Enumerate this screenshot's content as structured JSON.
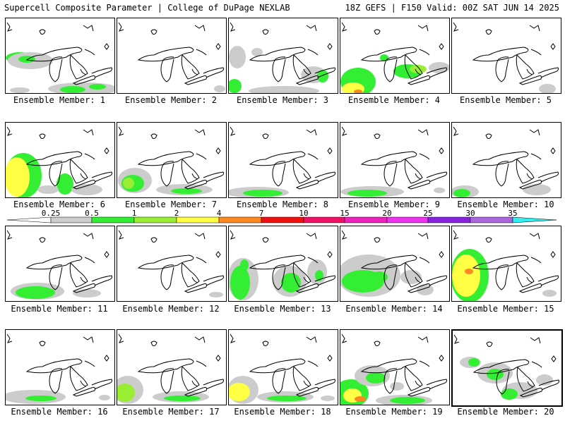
{
  "header": {
    "title": "Supercell Composite Parameter | College of DuPage NEXLAB",
    "run_info": "18Z GEFS | F150 Valid: 00Z SAT JUN 14 2025"
  },
  "colors": {
    "0.25": "#cccccc",
    "0.5": "#33ee33",
    "1": "#99ee33",
    "2": "#ffff44",
    "4": "#ff8822",
    "7": "#ee1111",
    "10": "#ee1166",
    "15": "#ee22bb",
    "20": "#ee33ee",
    "25": "#8822dd",
    "30": "#aa66dd",
    "35": "#33eeee"
  },
  "legend": {
    "ticks": [
      "0.25",
      "0.5",
      "1",
      "2",
      "4",
      "7",
      "10",
      "15",
      "20",
      "25",
      "30",
      "35"
    ]
  },
  "members": [
    {
      "label": "Ensemble Member: 1"
    },
    {
      "label": "Ensemble Member: 2"
    },
    {
      "label": "Ensemble Member: 3"
    },
    {
      "label": "Ensemble Member: 4"
    },
    {
      "label": "Ensemble Member: 5"
    },
    {
      "label": "Ensemble Member: 6"
    },
    {
      "label": "Ensemble Member: 7"
    },
    {
      "label": "Ensemble Member: 8"
    },
    {
      "label": "Ensemble Member: 9"
    },
    {
      "label": "Ensemble Member: 10"
    },
    {
      "label": "Ensemble Member: 11"
    },
    {
      "label": "Ensemble Member: 12"
    },
    {
      "label": "Ensemble Member: 13"
    },
    {
      "label": "Ensemble Member: 14"
    },
    {
      "label": "Ensemble Member: 15"
    },
    {
      "label": "Ensemble Member: 16"
    },
    {
      "label": "Ensemble Member: 17"
    },
    {
      "label": "Ensemble Member: 18"
    },
    {
      "label": "Ensemble Member: 19"
    },
    {
      "label": "Ensemble Member: 20"
    }
  ]
}
